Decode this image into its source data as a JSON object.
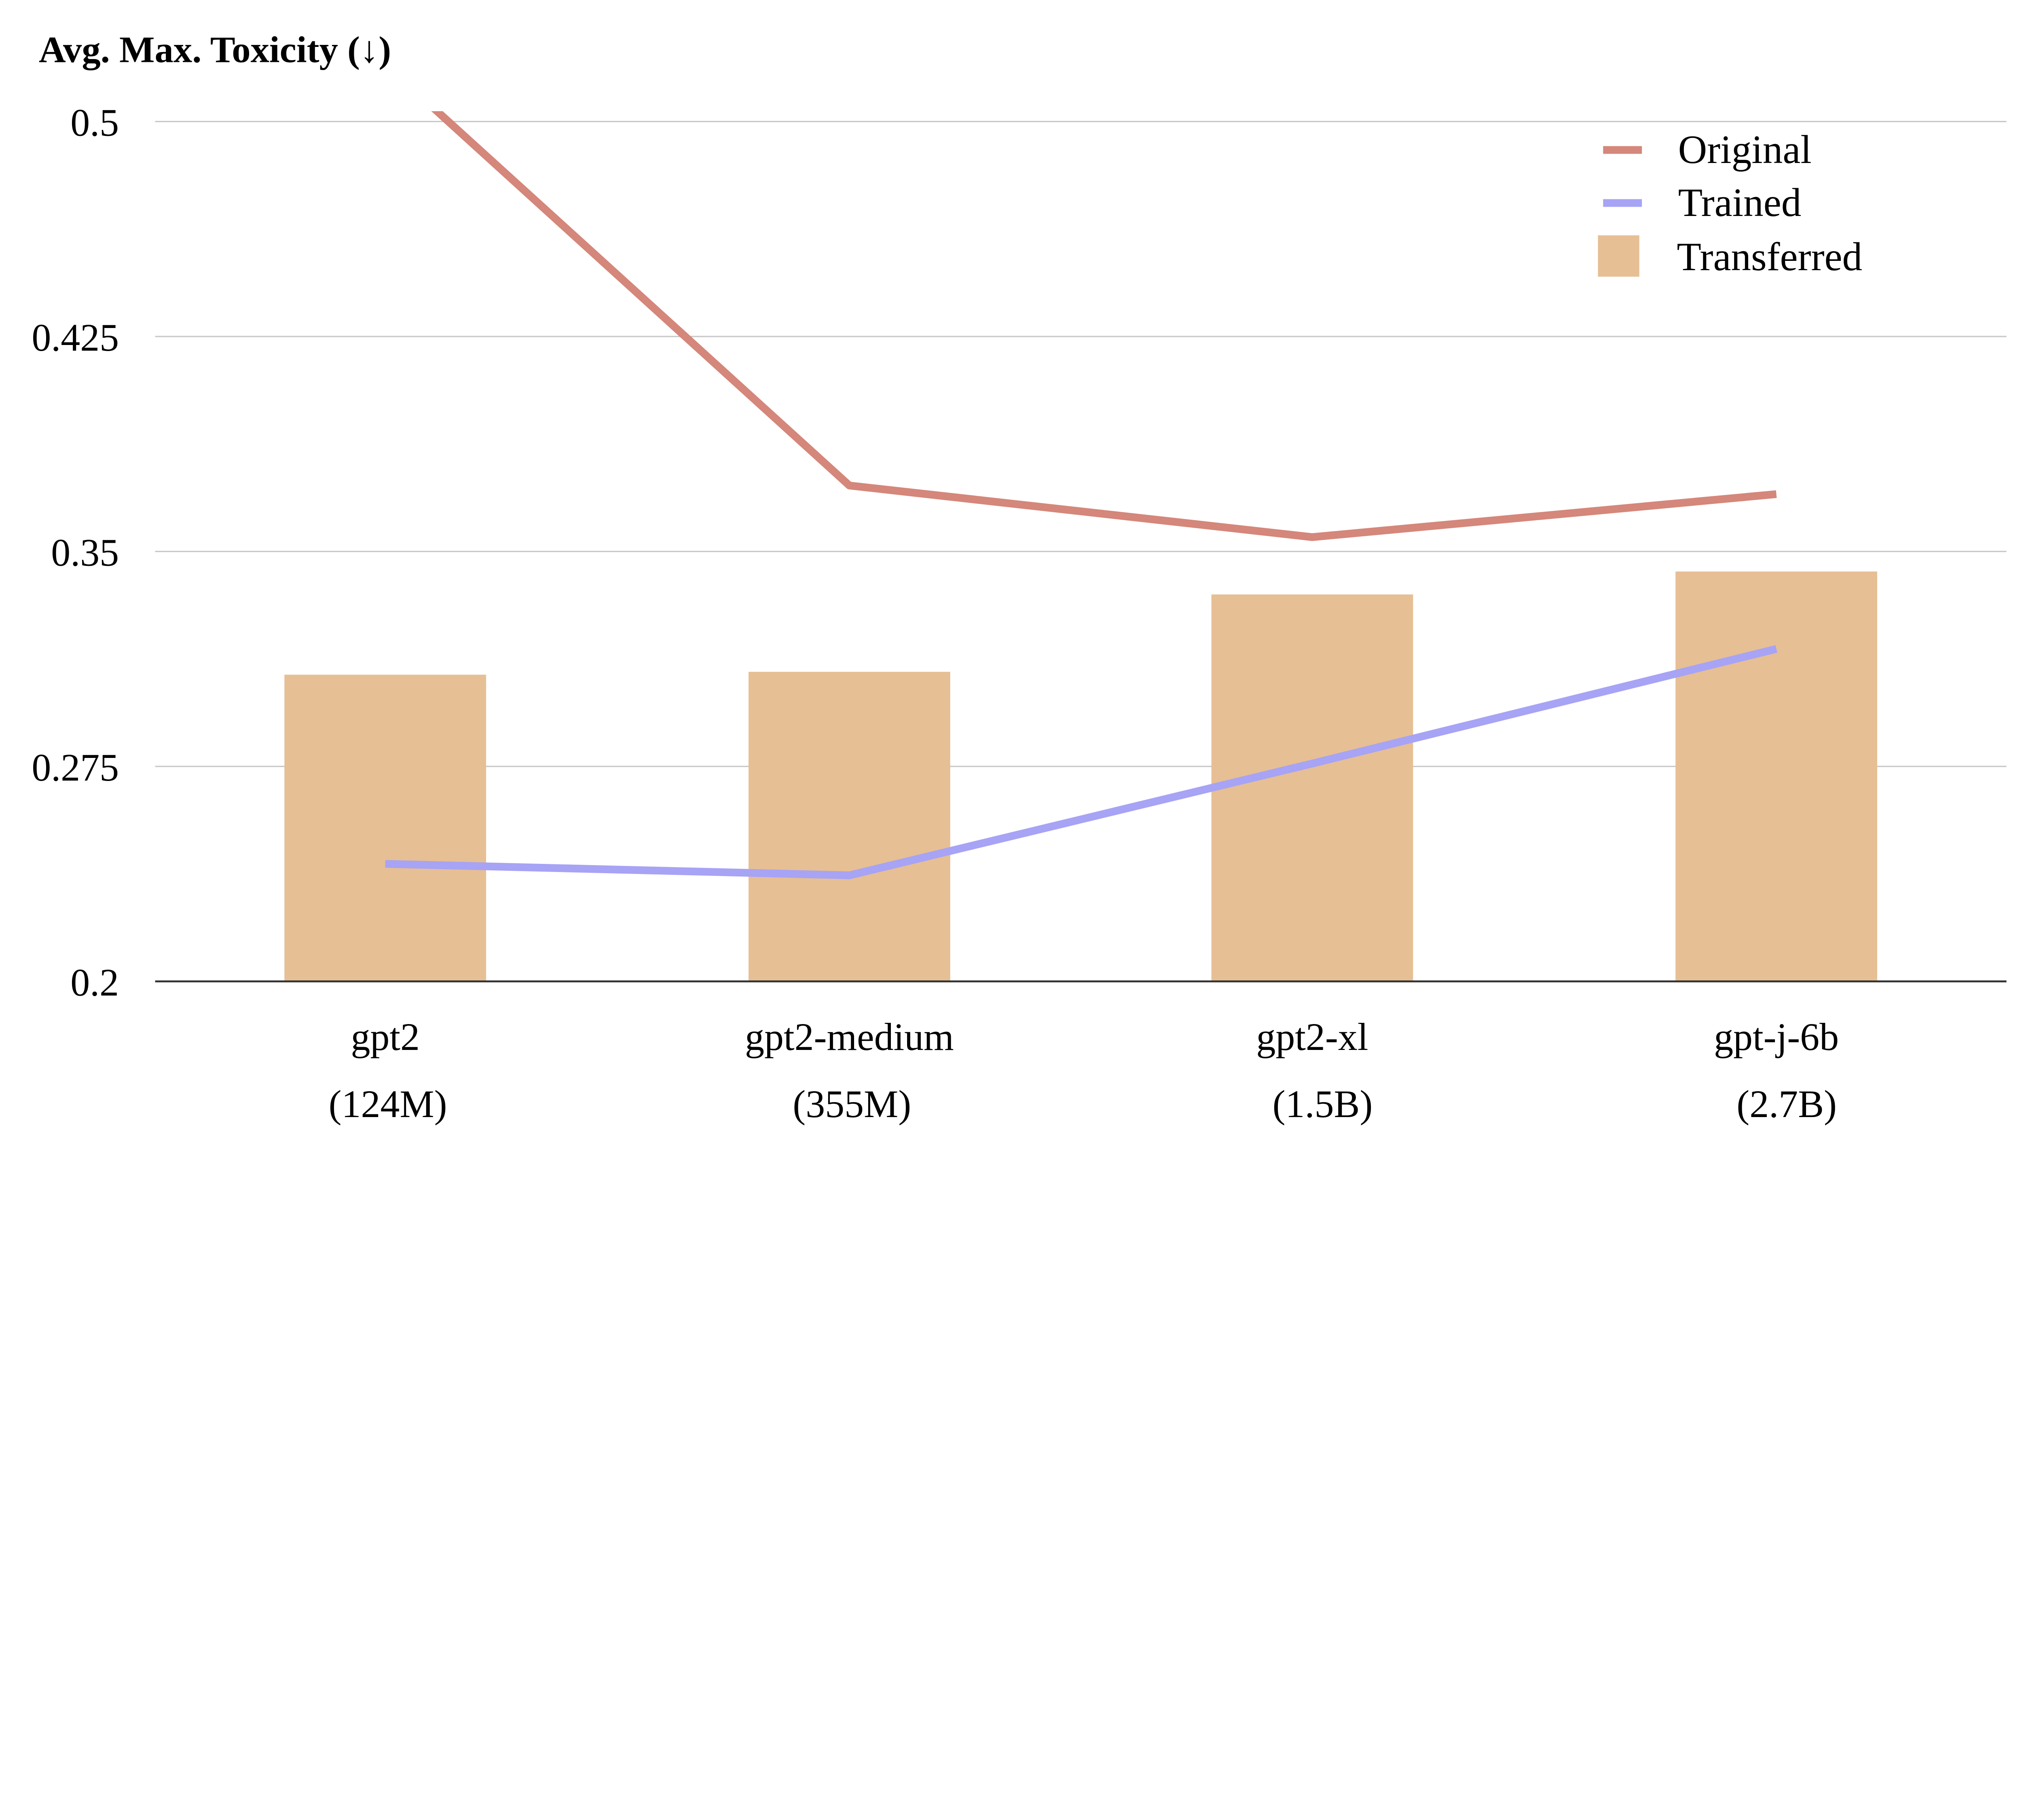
{
  "chart_data": {
    "type": "bar+line",
    "title": "Avg. Max. Toxicity (↓)",
    "xlabel": "",
    "ylabel": "",
    "ylim": [
      0.2,
      0.5
    ],
    "yticks": [
      0.5,
      0.425,
      0.35,
      0.275,
      0.2
    ],
    "ytick_labels": [
      "0.5",
      "0.425",
      "0.35",
      "0.275",
      "0.2"
    ],
    "grid": true,
    "legend_position": "top-right",
    "categories": [
      "gpt2",
      "gpt2-medium",
      "gpt2-xl",
      "gpt-j-6b"
    ],
    "category_sublabels": [
      "(124M)",
      "(355M)",
      "(1.5B)",
      "(2.7B)"
    ],
    "series": [
      {
        "name": "Original",
        "type": "line",
        "color": "#d4877a",
        "values": [
          0.52,
          0.373,
          0.355,
          0.37
        ]
      },
      {
        "name": "Trained",
        "type": "line",
        "color": "#a7a3f5",
        "values": [
          0.241,
          0.237,
          0.276,
          0.316
        ]
      },
      {
        "name": "Transferred",
        "type": "bar",
        "color": "#e6bf94",
        "values": [
          0.307,
          0.308,
          0.335,
          0.343
        ]
      }
    ]
  }
}
